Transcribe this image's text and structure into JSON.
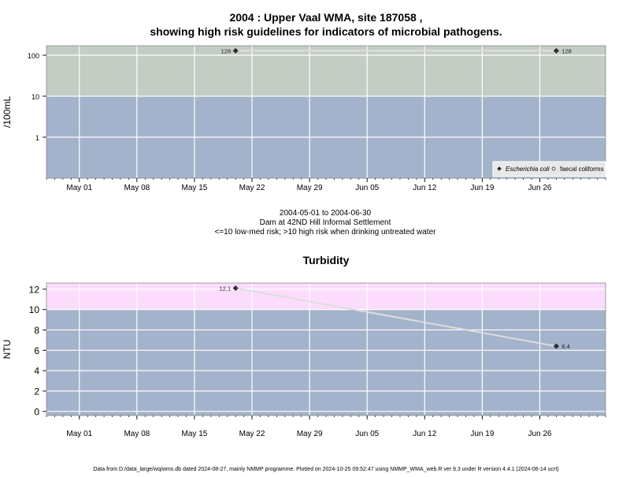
{
  "title_line1": "2004 : Upper Vaal WMA, site 187058 ,",
  "title_line2": "showing high risk guidelines for indicators of microbial pathogens.",
  "subtitle_lines": [
    "2004-05-01 to 2004-06-30",
    "Dam at 42ND Hill Informal Settlement",
    "<=10 low-med risk; >10 high risk when drinking untreated water"
  ],
  "footer": "Data from D:/data_large/wq/wms.db dated 2024-08-27, mainly NMMP programme. Plotted on 2024-10-25 09:52:47 using NMMP_WMA_web.R ver 9.3 under R version 4.4.1 (2024-06-14 ucrt)",
  "colors": {
    "low_band": "#a3b3cb",
    "high_band_microbial": "#c3cdc3",
    "high_band_turbidity": "#fcdcfc",
    "grid": "#ffffff",
    "series_line": "#dddddd",
    "marker": "#333333"
  },
  "chart_data": [
    {
      "type": "line",
      "title": "",
      "xlabel": "",
      "ylabel": "/100mL",
      "y_scale": "log",
      "ylim": [
        0.1,
        170
      ],
      "xlim": [
        "2004-04-27",
        "2004-07-04"
      ],
      "y_ticks": [
        1,
        10,
        100
      ],
      "y_tick_labels": [
        "1",
        "10",
        "100"
      ],
      "x_ticks": [
        "2004-05-01",
        "2004-05-08",
        "2004-05-15",
        "2004-05-22",
        "2004-05-29",
        "2004-06-05",
        "2004-06-12",
        "2004-06-19",
        "2004-06-26"
      ],
      "x_tick_labels": [
        "May 01",
        "May 08",
        "May 15",
        "May 22",
        "May 29",
        "Jun 05",
        "Jun 12",
        "Jun 19",
        "Jun 26"
      ],
      "guideline": 10,
      "grid": true,
      "legend_position": "bottom-right",
      "series": [
        {
          "name": "Escherichia coli",
          "marker": "filled-diamond",
          "x": [
            "2004-05-20",
            "2004-06-28"
          ],
          "y": [
            128,
            128
          ],
          "labels": [
            "128",
            "128"
          ]
        },
        {
          "name": "faecal coliforms",
          "marker": "open-circle",
          "x": [],
          "y": [],
          "labels": []
        }
      ]
    },
    {
      "type": "line",
      "title": "Turbidity",
      "xlabel": "",
      "ylabel": "NTU",
      "y_scale": "linear",
      "ylim": [
        -0.4,
        12.6
      ],
      "xlim": [
        "2004-04-27",
        "2004-07-04"
      ],
      "y_ticks": [
        0,
        2,
        4,
        6,
        8,
        10,
        12
      ],
      "y_tick_labels": [
        "0",
        "2",
        "4",
        "6",
        "8",
        "10",
        "12"
      ],
      "x_ticks": [
        "2004-05-01",
        "2004-05-08",
        "2004-05-15",
        "2004-05-22",
        "2004-05-29",
        "2004-06-05",
        "2004-06-12",
        "2004-06-19",
        "2004-06-26"
      ],
      "x_tick_labels": [
        "May 01",
        "May 08",
        "May 15",
        "May 22",
        "May 29",
        "Jun 05",
        "Jun 12",
        "Jun 19",
        "Jun 26"
      ],
      "guideline": 10,
      "grid": true,
      "series": [
        {
          "name": "",
          "marker": "filled-diamond",
          "x": [
            "2004-05-20",
            "2004-06-28"
          ],
          "y": [
            12.1,
            6.4
          ],
          "labels": [
            "12.1",
            "6.4"
          ]
        }
      ]
    }
  ]
}
